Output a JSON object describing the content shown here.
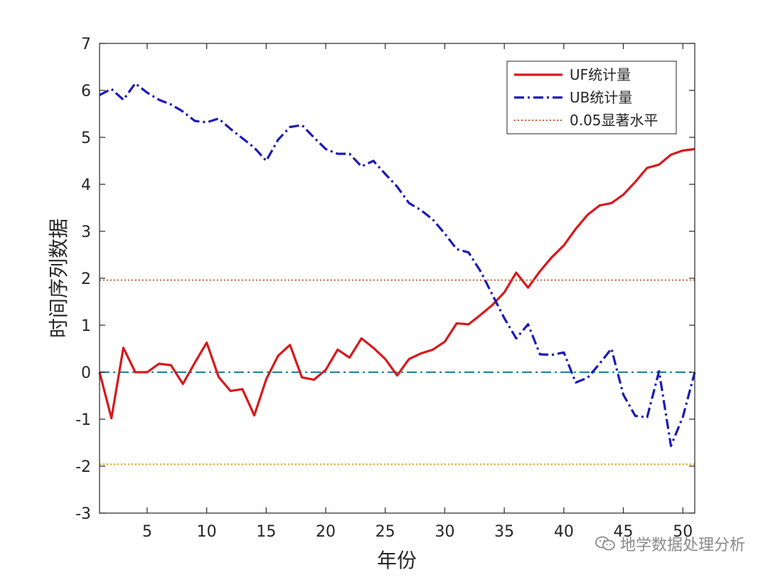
{
  "chart_data": {
    "type": "line",
    "xlabel": "年份",
    "ylabel": "时间序列数据",
    "xlim": [
      1,
      51
    ],
    "ylim": [
      -3,
      7
    ],
    "xticks": [
      5,
      10,
      15,
      20,
      25,
      30,
      35,
      40,
      45,
      50
    ],
    "yticks": [
      -3,
      -2,
      -1,
      0,
      1,
      2,
      3,
      4,
      5,
      6,
      7
    ],
    "legend_position": "top-right",
    "grid": false,
    "series": [
      {
        "name": "UF统计量",
        "color": "#d7191c",
        "style": "solid",
        "x": [
          1,
          2,
          3,
          4,
          5,
          6,
          7,
          8,
          9,
          10,
          11,
          12,
          13,
          14,
          15,
          16,
          17,
          18,
          19,
          20,
          21,
          22,
          23,
          24,
          25,
          26,
          27,
          28,
          29,
          30,
          31,
          32,
          33,
          34,
          35,
          36,
          37,
          38,
          39,
          40,
          41,
          42,
          43,
          44,
          45,
          46,
          47,
          48,
          49,
          50,
          51
        ],
        "values": [
          0,
          -0.98,
          0.52,
          0,
          0,
          0.18,
          0.15,
          -0.25,
          0.2,
          0.63,
          -0.1,
          -0.4,
          -0.36,
          -0.92,
          -0.15,
          0.35,
          0.58,
          -0.11,
          -0.16,
          0.05,
          0.48,
          0.31,
          0.72,
          0.52,
          0.28,
          -0.07,
          0.28,
          0.4,
          0.48,
          0.65,
          1.04,
          1.02,
          1.22,
          1.43,
          1.7,
          2.12,
          1.8,
          2.15,
          2.45,
          2.7,
          3.05,
          3.35,
          3.55,
          3.6,
          3.78,
          4.05,
          4.35,
          4.42,
          4.63,
          4.72,
          4.75
        ]
      },
      {
        "name": "UB统计量",
        "color": "#1a1ab8",
        "style": "dashdot",
        "x": [
          1,
          2,
          3,
          4,
          5,
          6,
          7,
          8,
          9,
          10,
          11,
          12,
          13,
          14,
          15,
          16,
          17,
          18,
          19,
          20,
          21,
          22,
          23,
          24,
          25,
          26,
          27,
          28,
          29,
          30,
          31,
          32,
          33,
          34,
          35,
          36,
          37,
          38,
          39,
          40,
          41,
          42,
          43,
          44,
          45,
          46,
          47,
          48,
          49,
          50,
          51
        ],
        "values": [
          5.9,
          6.03,
          5.8,
          6.15,
          5.95,
          5.8,
          5.7,
          5.55,
          5.35,
          5.32,
          5.4,
          5.18,
          4.98,
          4.78,
          4.5,
          4.95,
          5.22,
          5.26,
          5.0,
          4.75,
          4.65,
          4.65,
          4.38,
          4.5,
          4.22,
          3.95,
          3.6,
          3.45,
          3.25,
          2.95,
          2.62,
          2.55,
          2.15,
          1.65,
          1.15,
          0.72,
          1.02,
          0.38,
          0.37,
          0.42,
          -0.22,
          -0.12,
          0.18,
          0.5,
          -0.48,
          -0.93,
          -0.96,
          0.02,
          -1.57,
          -0.95,
          0
        ]
      },
      {
        "name": "0.05显著水平",
        "color": "#c0643a",
        "style": "dotted",
        "x": [
          1,
          51
        ],
        "values": [
          1.96,
          1.96
        ]
      }
    ],
    "reference_lines": [
      {
        "y": 0,
        "color": "#1f7fa0",
        "style": "dashdot"
      },
      {
        "y": -1.96,
        "color": "#e0a000",
        "style": "dotted"
      }
    ]
  },
  "watermark": {
    "text": "地学数据处理分析",
    "icon": "wechat-icon"
  }
}
